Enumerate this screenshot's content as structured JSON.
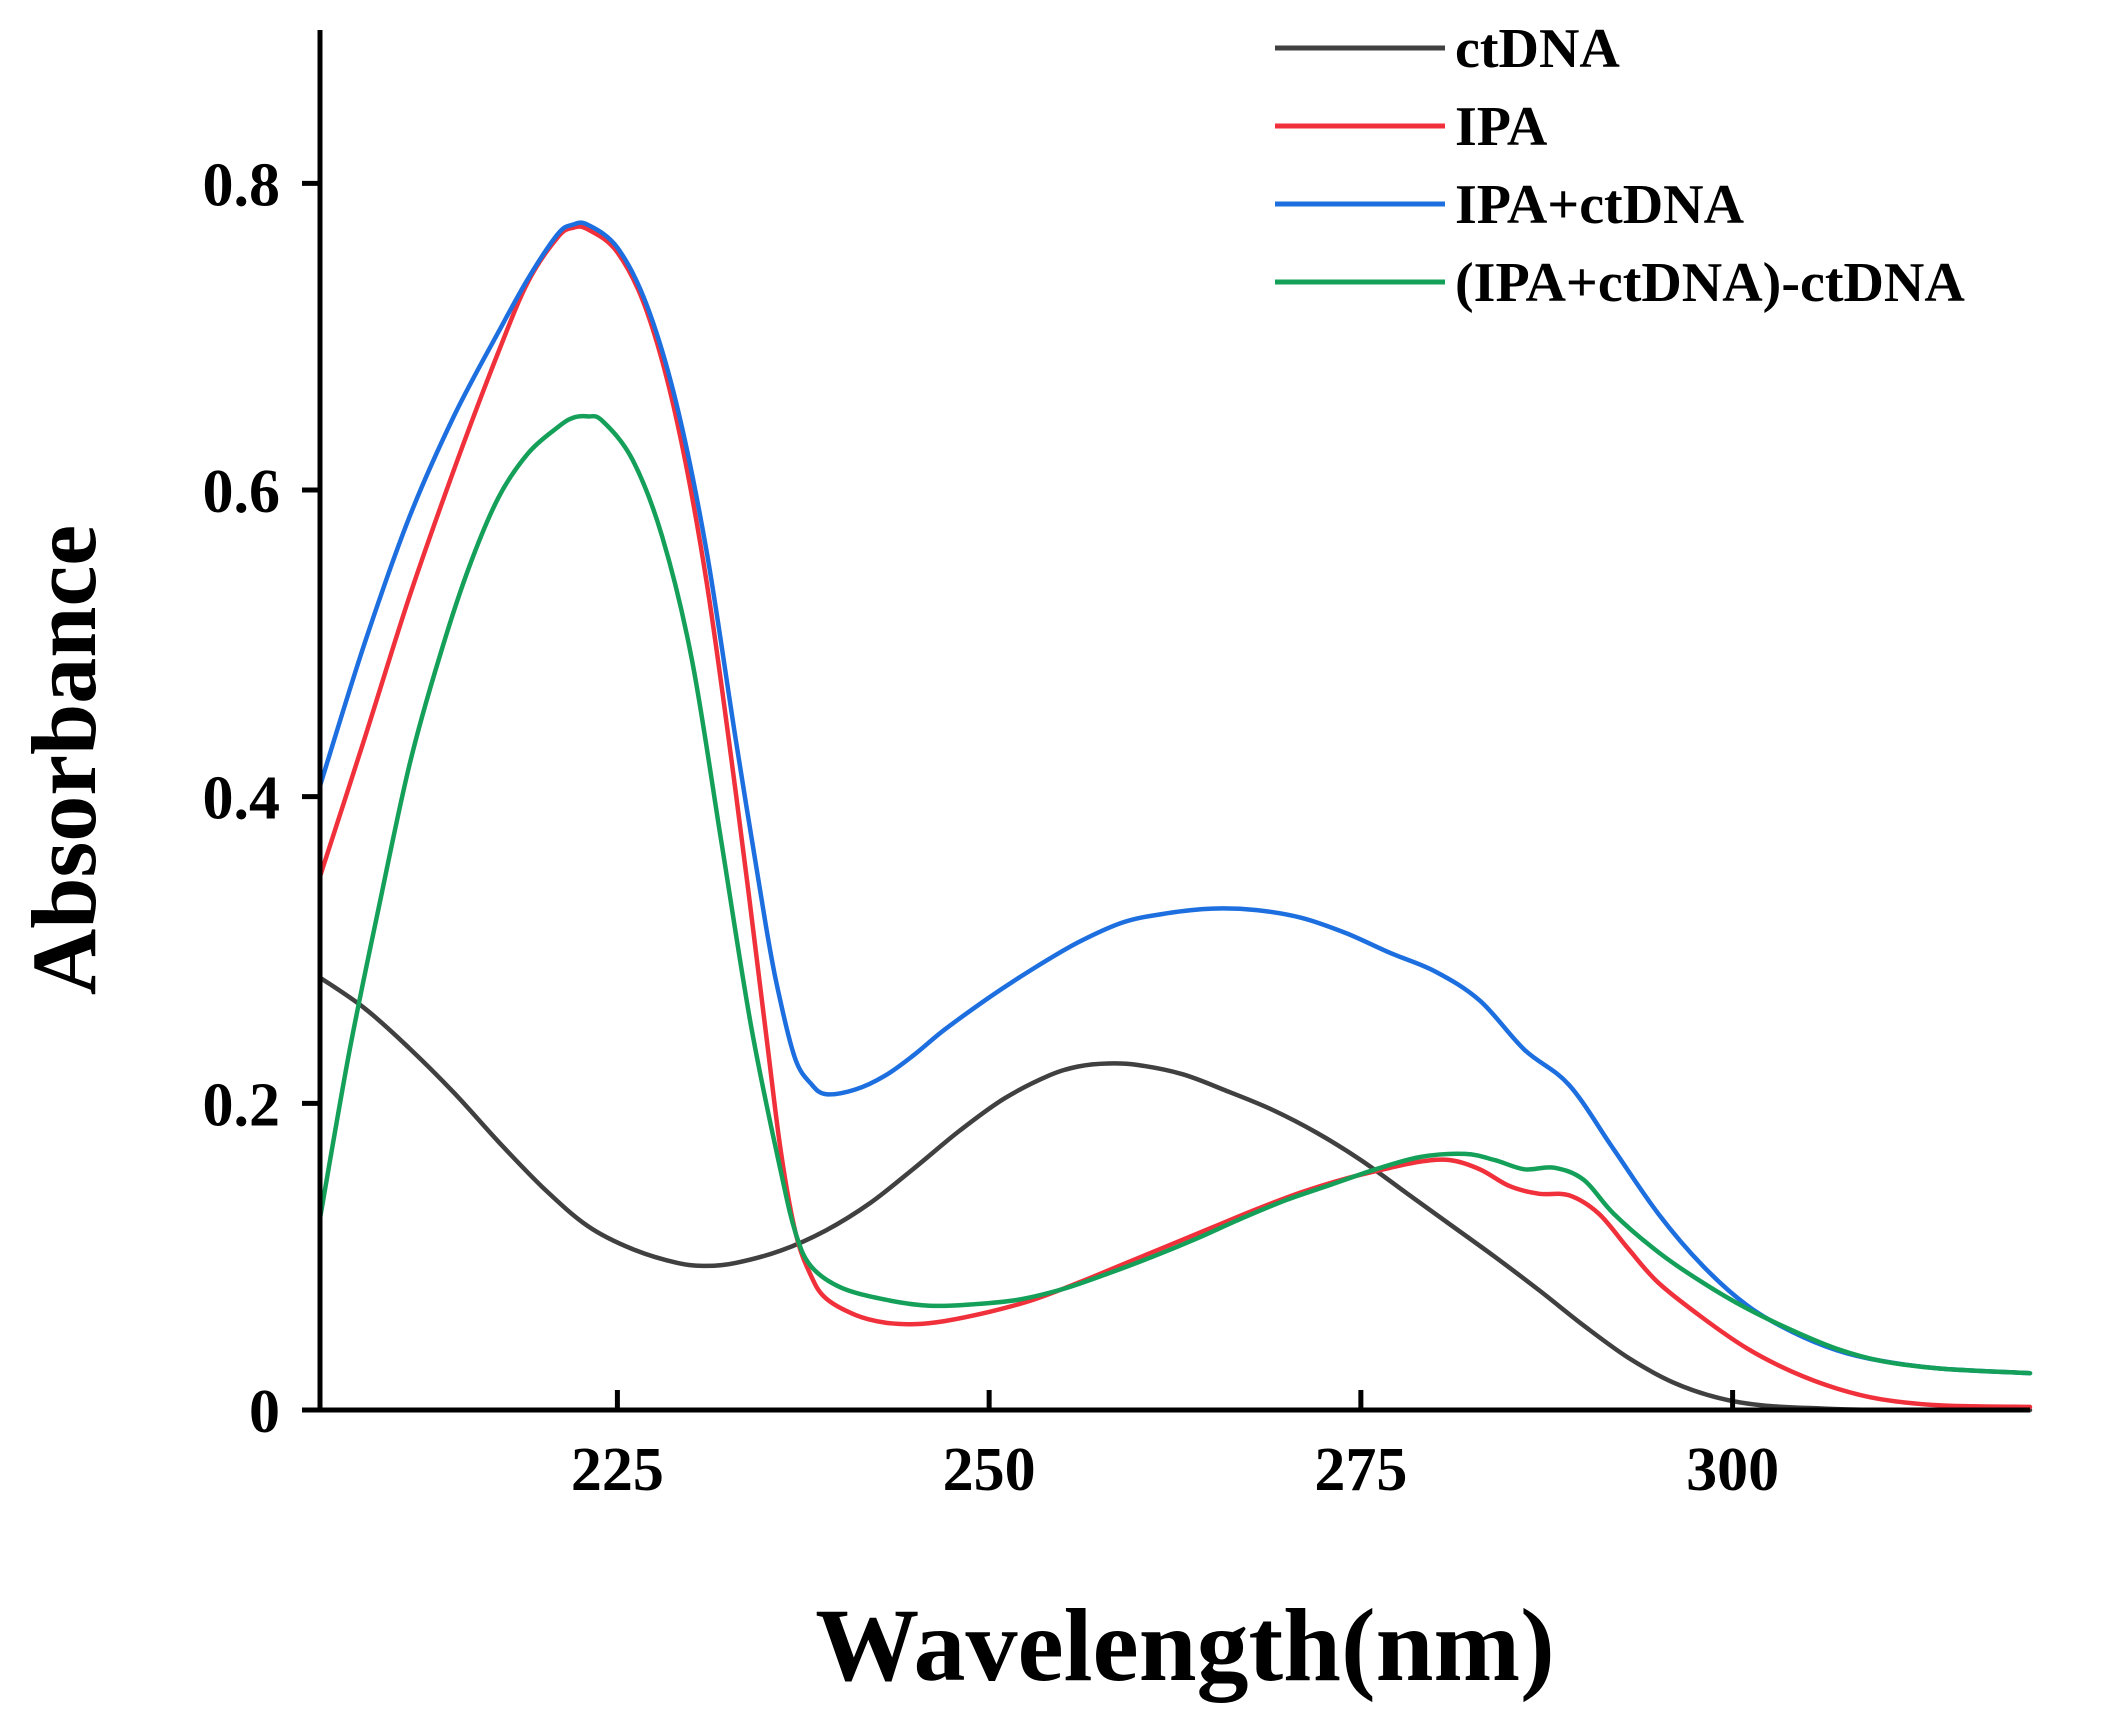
{
  "chart_data": {
    "type": "line",
    "title": "",
    "xlabel": "Wavelength(nm)",
    "ylabel": "Absorbance",
    "xlim": [
      205,
      320
    ],
    "ylim": [
      0,
      0.9
    ],
    "x_ticks": [
      225,
      250,
      275,
      300
    ],
    "x_tick_labels": [
      "225",
      "250",
      "275",
      "300"
    ],
    "y_ticks": [
      0,
      0.2,
      0.4,
      0.6,
      0.8
    ],
    "y_tick_labels": [
      "0",
      "0.2",
      "0.4",
      "0.6",
      "0.8"
    ],
    "legend_position": "top-right",
    "grid": false,
    "series": [
      {
        "name": "ctDNA",
        "color": "#404040",
        "points": [
          [
            205,
            0.282
          ],
          [
            208,
            0.262
          ],
          [
            211,
            0.236
          ],
          [
            214,
            0.207
          ],
          [
            217,
            0.175
          ],
          [
            220,
            0.145
          ],
          [
            223,
            0.12
          ],
          [
            226,
            0.105
          ],
          [
            229,
            0.096
          ],
          [
            231,
            0.094
          ],
          [
            233,
            0.096
          ],
          [
            236,
            0.104
          ],
          [
            239,
            0.117
          ],
          [
            242,
            0.135
          ],
          [
            245,
            0.158
          ],
          [
            248,
            0.182
          ],
          [
            251,
            0.203
          ],
          [
            254,
            0.218
          ],
          [
            256,
            0.224
          ],
          [
            258,
            0.226
          ],
          [
            260,
            0.225
          ],
          [
            263,
            0.219
          ],
          [
            266,
            0.208
          ],
          [
            269,
            0.196
          ],
          [
            272,
            0.181
          ],
          [
            275,
            0.163
          ],
          [
            278,
            0.142
          ],
          [
            281,
            0.121
          ],
          [
            284,
            0.1
          ],
          [
            287,
            0.078
          ],
          [
            290,
            0.055
          ],
          [
            293,
            0.034
          ],
          [
            296,
            0.018
          ],
          [
            299,
            0.008
          ],
          [
            302,
            0.003
          ],
          [
            306,
            0.001
          ],
          [
            310,
            0.0
          ],
          [
            320,
            0.0
          ]
        ]
      },
      {
        "name": "IPA",
        "color": "#f0303a",
        "points": [
          [
            205,
            0.348
          ],
          [
            208,
            0.438
          ],
          [
            211,
            0.53
          ],
          [
            214,
            0.613
          ],
          [
            217,
            0.69
          ],
          [
            219,
            0.736
          ],
          [
            221,
            0.765
          ],
          [
            222,
            0.771
          ],
          [
            223,
            0.77
          ],
          [
            225,
            0.755
          ],
          [
            227,
            0.716
          ],
          [
            229,
            0.645
          ],
          [
            231,
            0.54
          ],
          [
            233,
            0.4
          ],
          [
            235,
            0.245
          ],
          [
            236,
            0.168
          ],
          [
            237,
            0.115
          ],
          [
            238,
            0.088
          ],
          [
            239,
            0.073
          ],
          [
            241,
            0.062
          ],
          [
            243,
            0.057
          ],
          [
            245,
            0.056
          ],
          [
            247,
            0.058
          ],
          [
            250,
            0.064
          ],
          [
            253,
            0.072
          ],
          [
            256,
            0.083
          ],
          [
            259,
            0.095
          ],
          [
            262,
            0.107
          ],
          [
            265,
            0.119
          ],
          [
            268,
            0.131
          ],
          [
            271,
            0.142
          ],
          [
            274,
            0.151
          ],
          [
            277,
            0.158
          ],
          [
            279,
            0.162
          ],
          [
            281,
            0.163
          ],
          [
            283,
            0.157
          ],
          [
            285,
            0.146
          ],
          [
            287,
            0.141
          ],
          [
            289,
            0.14
          ],
          [
            291,
            0.128
          ],
          [
            293,
            0.105
          ],
          [
            295,
            0.083
          ],
          [
            298,
            0.06
          ],
          [
            301,
            0.04
          ],
          [
            304,
            0.025
          ],
          [
            307,
            0.014
          ],
          [
            310,
            0.007
          ],
          [
            314,
            0.003
          ],
          [
            320,
            0.002
          ]
        ]
      },
      {
        "name": "IPA+ctDNA",
        "color": "#1d6fe0",
        "points": [
          [
            205,
            0.407
          ],
          [
            208,
            0.5
          ],
          [
            211,
            0.582
          ],
          [
            214,
            0.648
          ],
          [
            217,
            0.703
          ],
          [
            219,
            0.738
          ],
          [
            221,
            0.767
          ],
          [
            222,
            0.773
          ],
          [
            223,
            0.773
          ],
          [
            225,
            0.758
          ],
          [
            227,
            0.72
          ],
          [
            229,
            0.655
          ],
          [
            231,
            0.56
          ],
          [
            233,
            0.435
          ],
          [
            235,
            0.315
          ],
          [
            236,
            0.265
          ],
          [
            237,
            0.228
          ],
          [
            238,
            0.213
          ],
          [
            239,
            0.206
          ],
          [
            241,
            0.209
          ],
          [
            243,
            0.218
          ],
          [
            245,
            0.232
          ],
          [
            247,
            0.248
          ],
          [
            250,
            0.269
          ],
          [
            253,
            0.288
          ],
          [
            256,
            0.305
          ],
          [
            259,
            0.318
          ],
          [
            262,
            0.324
          ],
          [
            265,
            0.327
          ],
          [
            268,
            0.326
          ],
          [
            271,
            0.321
          ],
          [
            274,
            0.311
          ],
          [
            277,
            0.298
          ],
          [
            280,
            0.286
          ],
          [
            283,
            0.267
          ],
          [
            286,
            0.235
          ],
          [
            289,
            0.212
          ],
          [
            292,
            0.17
          ],
          [
            295,
            0.128
          ],
          [
            298,
            0.094
          ],
          [
            301,
            0.068
          ],
          [
            304,
            0.051
          ],
          [
            307,
            0.039
          ],
          [
            310,
            0.032
          ],
          [
            314,
            0.027
          ],
          [
            320,
            0.024
          ]
        ]
      },
      {
        "name": "(IPA+ctDNA)-ctDNA",
        "color": "#15a05a",
        "points": [
          [
            205,
            0.125
          ],
          [
            207,
            0.235
          ],
          [
            209,
            0.33
          ],
          [
            211,
            0.42
          ],
          [
            213,
            0.49
          ],
          [
            215,
            0.549
          ],
          [
            217,
            0.595
          ],
          [
            219,
            0.624
          ],
          [
            221,
            0.641
          ],
          [
            222,
            0.647
          ],
          [
            223,
            0.648
          ],
          [
            224,
            0.645
          ],
          [
            226,
            0.62
          ],
          [
            228,
            0.57
          ],
          [
            230,
            0.49
          ],
          [
            232,
            0.37
          ],
          [
            234,
            0.25
          ],
          [
            236,
            0.155
          ],
          [
            237,
            0.115
          ],
          [
            238,
            0.094
          ],
          [
            240,
            0.08
          ],
          [
            243,
            0.072
          ],
          [
            246,
            0.068
          ],
          [
            249,
            0.069
          ],
          [
            252,
            0.072
          ],
          [
            255,
            0.079
          ],
          [
            258,
            0.089
          ],
          [
            261,
            0.1
          ],
          [
            264,
            0.112
          ],
          [
            267,
            0.125
          ],
          [
            270,
            0.137
          ],
          [
            273,
            0.147
          ],
          [
            276,
            0.157
          ],
          [
            279,
            0.165
          ],
          [
            282,
            0.167
          ],
          [
            284,
            0.163
          ],
          [
            286,
            0.157
          ],
          [
            288,
            0.158
          ],
          [
            290,
            0.15
          ],
          [
            292,
            0.128
          ],
          [
            295,
            0.103
          ],
          [
            298,
            0.083
          ],
          [
            301,
            0.066
          ],
          [
            304,
            0.052
          ],
          [
            307,
            0.04
          ],
          [
            310,
            0.032
          ],
          [
            314,
            0.027
          ],
          [
            320,
            0.024
          ]
        ]
      }
    ]
  }
}
